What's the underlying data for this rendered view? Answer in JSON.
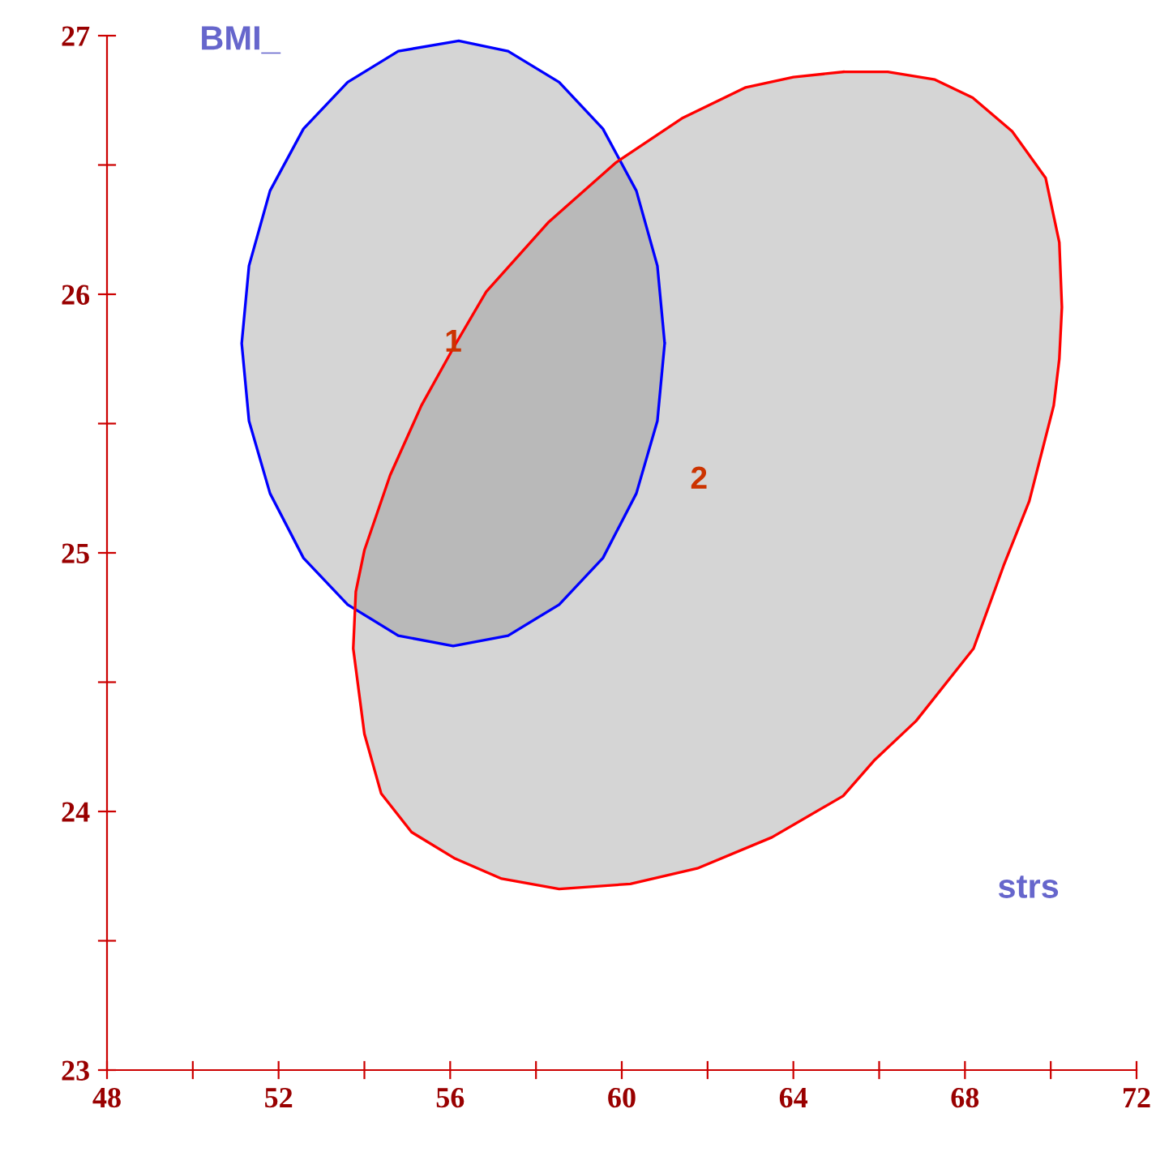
{
  "chart_data": {
    "type": "area",
    "xlabel": "strs",
    "ylabel": "BMI_",
    "series": [
      {
        "name": null,
        "color": "#0000ff",
        "x": [
          61.0,
          60.83,
          60.34,
          59.56,
          58.54,
          57.35,
          56.2,
          54.79,
          53.61,
          52.58,
          51.8,
          51.31,
          51.14,
          51.31,
          51.8,
          52.58,
          53.61,
          54.79,
          56.07,
          57.35,
          58.54,
          59.56,
          60.34,
          60.83,
          61.0
        ],
        "values": [
          25.81,
          26.11,
          26.4,
          26.64,
          26.82,
          26.94,
          26.98,
          26.94,
          26.82,
          26.64,
          26.4,
          26.11,
          25.81,
          25.51,
          25.23,
          24.98,
          24.8,
          24.68,
          24.64,
          24.68,
          24.8,
          24.98,
          25.23,
          25.51,
          25.81
        ]
      },
      {
        "name": null,
        "color": "#ff0000",
        "x": [
          65.16,
          66.2,
          67.3,
          68.18,
          69.1,
          69.88,
          70.2,
          70.26,
          70.2,
          70.07,
          69.5,
          68.9,
          68.2,
          66.86,
          65.9,
          65.16,
          63.5,
          61.76,
          60.2,
          58.54,
          57.2,
          56.09,
          55.1,
          54.39,
          54.0,
          53.74,
          53.8,
          54.0,
          54.6,
          55.33,
          56.1,
          56.84,
          58.3,
          59.87,
          61.4,
          62.89,
          64.0,
          65.16
        ],
        "values": [
          26.86,
          26.86,
          26.83,
          26.76,
          26.63,
          26.45,
          26.2,
          25.95,
          25.75,
          25.57,
          25.2,
          24.95,
          24.63,
          24.35,
          24.2,
          24.06,
          23.9,
          23.78,
          23.72,
          23.7,
          23.74,
          23.82,
          23.92,
          24.07,
          24.3,
          24.63,
          24.85,
          25.01,
          25.3,
          25.57,
          25.8,
          26.01,
          26.28,
          26.51,
          26.68,
          26.8,
          26.84,
          26.86
        ]
      }
    ],
    "annotations": [
      "1",
      "2"
    ],
    "xlim": [
      48,
      72
    ],
    "ylim": [
      23,
      27
    ],
    "xticks": [
      48,
      {
        "value": 50,
        "label": null
      },
      52,
      {
        "value": 54,
        "label": null
      },
      56,
      {
        "value": 58,
        "label": null
      },
      60,
      {
        "value": 62,
        "label": null
      },
      64,
      {
        "value": 66,
        "label": null
      },
      68,
      {
        "value": 70,
        "label": null
      },
      72
    ],
    "yticks": [
      23,
      {
        "value": 23.5,
        "label": null
      },
      24,
      {
        "value": 24.5,
        "label": null
      },
      25,
      {
        "value": 25.5,
        "label": null
      },
      26,
      {
        "value": 26.5,
        "label": null
      },
      27
    ],
    "grid": false
  }
}
